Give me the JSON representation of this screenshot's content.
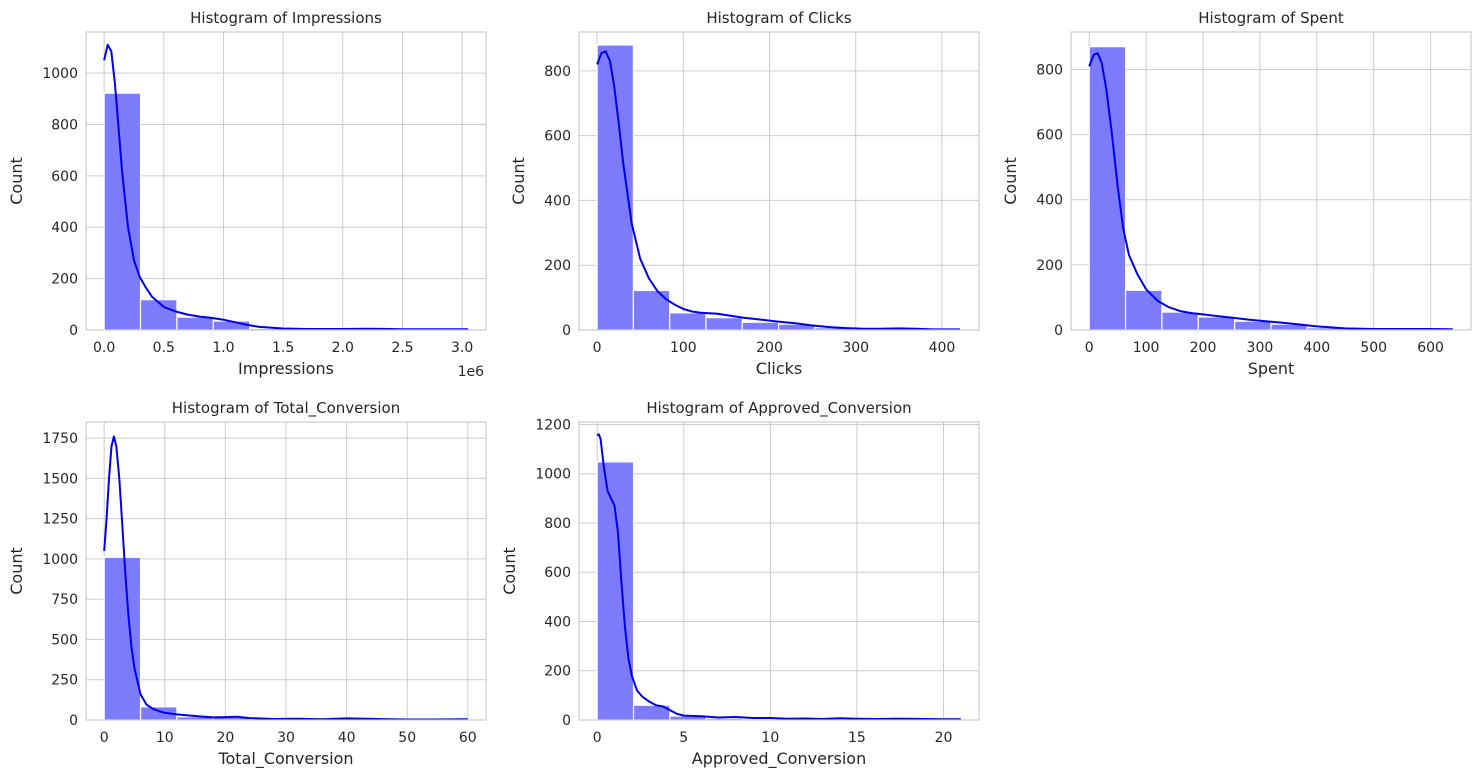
{
  "colors": {
    "bar_fill": "#7b7bfb",
    "bar_edge": "#ffffff",
    "kde_line": "#0000ee",
    "grid": "#cccccc",
    "spine": "#cccccc",
    "text": "#262626"
  },
  "chart_data": [
    {
      "type": "bar",
      "title": "Histogram of Impressions",
      "xlabel": "Impressions",
      "ylabel": "Count",
      "offset_label": "1e6",
      "xlim": [
        -0.152,
        3.2
      ],
      "ylim": [
        0,
        1160
      ],
      "xticks": [
        0,
        0.5,
        1.0,
        1.5,
        2.0,
        2.5,
        3.0
      ],
      "xtick_labels": [
        "0.0",
        "0.5",
        "1.0",
        "1.5",
        "2.0",
        "2.5",
        "3.0"
      ],
      "yticks": [
        0,
        200,
        400,
        600,
        800,
        1000
      ],
      "ytick_labels": [
        "0",
        "200",
        "400",
        "600",
        "800",
        "1000"
      ],
      "bin_edges": [
        0,
        0.305,
        0.61,
        0.915,
        1.22,
        1.525,
        1.83,
        2.135,
        2.44,
        2.745,
        3.05
      ],
      "counts": [
        922,
        118,
        50,
        35,
        6,
        3,
        2,
        3,
        1,
        3
      ],
      "kde": {
        "x": [
          0,
          0.03,
          0.06,
          0.09,
          0.12,
          0.15,
          0.2,
          0.25,
          0.3,
          0.35,
          0.4,
          0.5,
          0.6,
          0.7,
          0.8,
          0.9,
          1.0,
          1.1,
          1.2,
          1.3,
          1.5,
          1.7,
          2.0,
          2.2,
          2.5,
          2.8,
          3.05
        ],
        "y": [
          1050,
          1110,
          1085,
          960,
          790,
          620,
          400,
          270,
          205,
          165,
          130,
          90,
          72,
          60,
          52,
          47,
          40,
          30,
          20,
          12,
          6,
          4,
          4,
          5,
          3,
          3,
          3
        ]
      }
    },
    {
      "type": "bar",
      "title": "Histogram of Clicks",
      "xlabel": "Clicks",
      "ylabel": "Count",
      "xlim": [
        -21,
        443
      ],
      "ylim": [
        0,
        920
      ],
      "xticks": [
        0,
        100,
        200,
        300,
        400
      ],
      "xtick_labels": [
        "0",
        "100",
        "200",
        "300",
        "400"
      ],
      "yticks": [
        0,
        200,
        400,
        600,
        800
      ],
      "ytick_labels": [
        "0",
        "200",
        "400",
        "600",
        "800"
      ],
      "bin_edges": [
        0,
        42.1,
        84.2,
        126.3,
        168.4,
        210.5,
        252.6,
        294.7,
        336.8,
        378.9,
        421
      ],
      "counts": [
        880,
        122,
        53,
        38,
        24,
        18,
        7,
        3,
        5,
        3
      ],
      "kde": {
        "x": [
          0,
          5,
          10,
          15,
          20,
          25,
          30,
          40,
          50,
          60,
          70,
          80,
          90,
          100,
          110,
          120,
          130,
          140,
          150,
          170,
          190,
          210,
          230,
          250,
          270,
          290,
          310,
          330,
          350,
          370,
          390,
          421
        ],
        "y": [
          820,
          855,
          860,
          830,
          750,
          640,
          520,
          330,
          220,
          160,
          120,
          95,
          78,
          65,
          57,
          53,
          52,
          50,
          46,
          38,
          32,
          26,
          21,
          14,
          9,
          6,
          4,
          4,
          5,
          4,
          2,
          2
        ]
      }
    },
    {
      "type": "bar",
      "title": "Histogram of Spent",
      "xlabel": "Spent",
      "ylabel": "Count",
      "xlim": [
        -32,
        671
      ],
      "ylim": [
        0,
        915
      ],
      "xticks": [
        0,
        100,
        200,
        300,
        400,
        500,
        600
      ],
      "xtick_labels": [
        "0",
        "100",
        "200",
        "300",
        "400",
        "500",
        "600"
      ],
      "yticks": [
        0,
        200,
        400,
        600,
        800
      ],
      "ytick_labels": [
        "0",
        "200",
        "400",
        "600",
        "800"
      ],
      "bin_edges": [
        0,
        63.9,
        127.8,
        191.7,
        255.6,
        319.5,
        383.4,
        447.3,
        511.2,
        575.1,
        639
      ],
      "counts": [
        870,
        122,
        55,
        40,
        27,
        18,
        7,
        3,
        3,
        2
      ],
      "kde": {
        "x": [
          0,
          8,
          15,
          22,
          30,
          40,
          50,
          60,
          70,
          85,
          100,
          120,
          140,
          160,
          180,
          200,
          220,
          250,
          280,
          310,
          340,
          370,
          400,
          450,
          500,
          550,
          600,
          639
        ],
        "y": [
          810,
          845,
          850,
          820,
          740,
          600,
          440,
          310,
          230,
          170,
          125,
          90,
          70,
          58,
          52,
          48,
          44,
          38,
          32,
          27,
          22,
          17,
          11,
          5,
          3,
          3,
          3,
          2
        ]
      }
    },
    {
      "type": "bar",
      "title": "Histogram of Total_Conversion",
      "xlabel": "Total_Conversion",
      "ylabel": "Count",
      "xlim": [
        -3,
        63
      ],
      "ylim": [
        0,
        1850
      ],
      "xticks": [
        0,
        10,
        20,
        30,
        40,
        50,
        60
      ],
      "xtick_labels": [
        "0",
        "10",
        "20",
        "30",
        "40",
        "50",
        "60"
      ],
      "yticks": [
        0,
        250,
        500,
        750,
        1000,
        1250,
        1500,
        1750
      ],
      "ytick_labels": [
        "0",
        "250",
        "500",
        "750",
        "1000",
        "1250",
        "1500",
        "1750"
      ],
      "bin_edges": [
        0,
        6,
        12,
        18,
        24,
        30,
        36,
        42,
        48,
        54,
        60
      ],
      "counts": [
        1010,
        82,
        20,
        16,
        8,
        4,
        6,
        3,
        2,
        3
      ],
      "kde": {
        "x": [
          0,
          0.4,
          0.8,
          1.2,
          1.6,
          2.0,
          2.5,
          3.0,
          3.5,
          4.0,
          4.5,
          5.0,
          6.0,
          7.0,
          8.0,
          9.0,
          10.0,
          12.0,
          14.0,
          16.0,
          18.0,
          20.0,
          22.0,
          24.0,
          28.0,
          32.0,
          36.0,
          40.0,
          45.0,
          50.0,
          55.0,
          60.0
        ],
        "y": [
          1050,
          1250,
          1500,
          1700,
          1760,
          1700,
          1500,
          1200,
          900,
          650,
          450,
          320,
          160,
          95,
          70,
          55,
          45,
          35,
          28,
          22,
          16,
          18,
          20,
          12,
          6,
          8,
          5,
          10,
          6,
          3,
          3,
          5
        ]
      }
    },
    {
      "type": "bar",
      "title": "Histogram of Approved_Conversion",
      "xlabel": "Approved_Conversion",
      "ylabel": "Count",
      "xlim": [
        -1.05,
        22.05
      ],
      "ylim": [
        0,
        1210
      ],
      "xticks": [
        0,
        5,
        10,
        15,
        20
      ],
      "xtick_labels": [
        "0",
        "5",
        "10",
        "15",
        "20"
      ],
      "yticks": [
        0,
        200,
        400,
        600,
        800,
        1000,
        1200
      ],
      "ytick_labels": [
        "0",
        "200",
        "400",
        "600",
        "800",
        "1000",
        "1200"
      ],
      "bin_edges": [
        0,
        2.1,
        4.2,
        6.3,
        8.4,
        10.5,
        12.6,
        14.7,
        16.8,
        18.9,
        21
      ],
      "counts": [
        1048,
        60,
        16,
        7,
        3,
        2,
        3,
        2,
        1,
        1
      ],
      "kde": {
        "x": [
          0,
          0.1,
          0.2,
          0.4,
          0.6,
          0.8,
          1.0,
          1.2,
          1.4,
          1.6,
          1.8,
          2.0,
          2.3,
          2.6,
          3.0,
          3.4,
          3.8,
          4.2,
          4.6,
          5.0,
          6.0,
          7.0,
          8.0,
          9.0,
          10.0,
          11.0,
          12.0,
          13.0,
          14.0,
          15.0,
          16.0,
          17.0,
          18.0,
          19.0,
          20.0,
          21.0
        ],
        "y": [
          1155,
          1160,
          1140,
          1020,
          930,
          900,
          870,
          760,
          560,
          380,
          250,
          180,
          120,
          95,
          75,
          60,
          55,
          40,
          25,
          18,
          15,
          10,
          12,
          8,
          8,
          5,
          6,
          4,
          7,
          5,
          4,
          5,
          5,
          4,
          3,
          3
        ]
      }
    }
  ]
}
